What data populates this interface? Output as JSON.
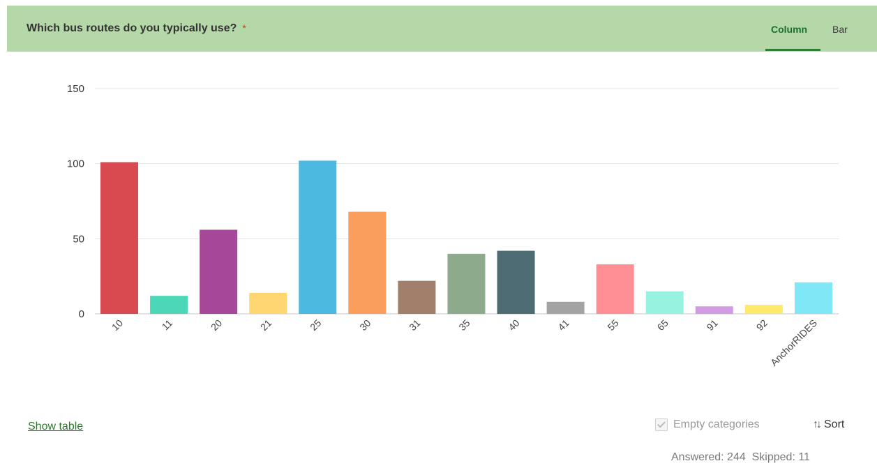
{
  "header": {
    "question": "Which bus routes do you typically use?",
    "required_mark": "*",
    "tabs": [
      {
        "label": "Column",
        "active": true
      },
      {
        "label": "Bar",
        "active": false
      }
    ]
  },
  "chart_data": {
    "type": "bar",
    "categories": [
      "10",
      "11",
      "20",
      "21",
      "25",
      "30",
      "31",
      "35",
      "40",
      "41",
      "55",
      "65",
      "91",
      "92",
      "AnchorRIDES"
    ],
    "values": [
      101,
      12,
      56,
      14,
      102,
      68,
      22,
      40,
      42,
      8,
      33,
      15,
      5,
      6,
      21
    ],
    "colors": [
      "#d84a4f",
      "#4dd7b9",
      "#a54899",
      "#ffd671",
      "#4cb9e0",
      "#f99e5c",
      "#a17f6a",
      "#8dab8c",
      "#4e6c74",
      "#a3a3a3",
      "#ff8e95",
      "#98f2e0",
      "#d29be3",
      "#ffe96a",
      "#7fe7f6"
    ],
    "yticks": [
      0,
      50,
      100,
      150
    ],
    "ylim": [
      0,
      150
    ],
    "grid": true
  },
  "footer": {
    "show_table": "Show table",
    "empty_categories": "Empty categories",
    "sort": "Sort",
    "answered": "Answered: 244",
    "skipped": "Skipped: 11"
  }
}
